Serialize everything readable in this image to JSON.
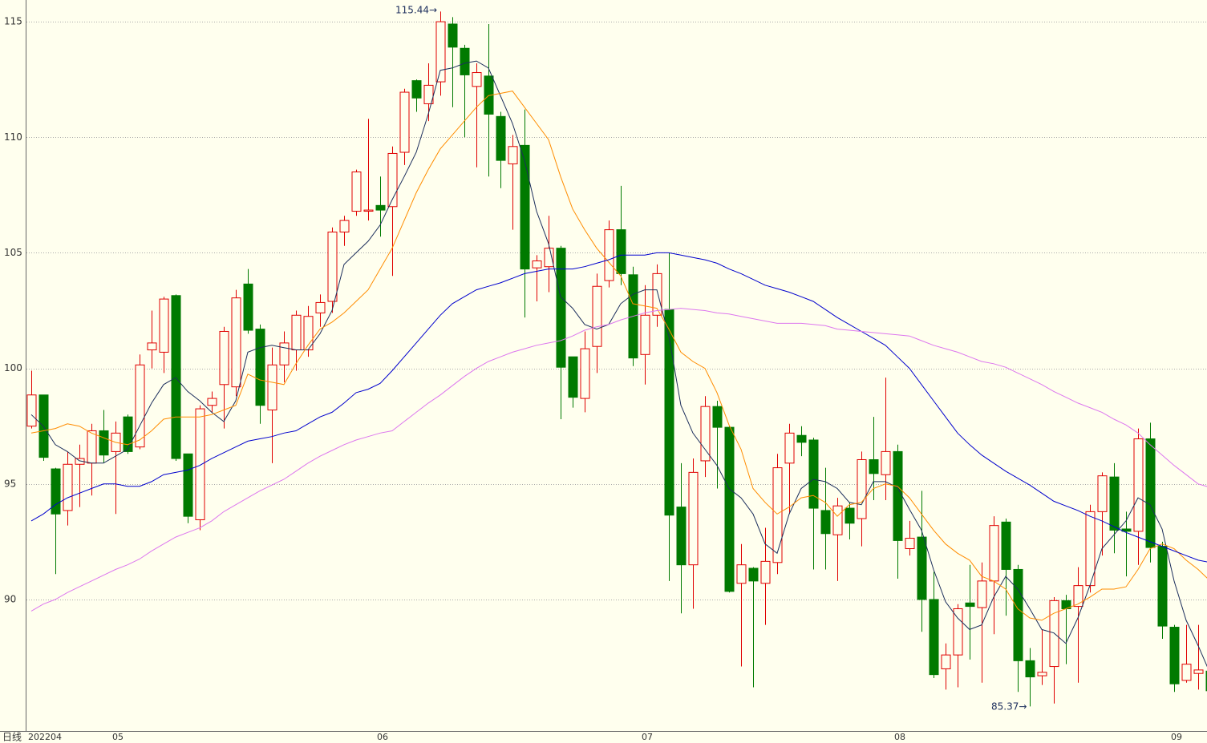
{
  "chart_data": {
    "type": "candlestick",
    "period_label": "日线",
    "annotations": [
      {
        "text": "115.44→"
      },
      {
        "text": "85.37→"
      }
    ],
    "up_color": "#e00000",
    "down_color": "#007a00",
    "categories": [
      "202204",
      null,
      null,
      null,
      null,
      null,
      null,
      "05",
      null,
      null,
      null,
      null,
      null,
      null,
      null,
      null,
      null,
      null,
      null,
      null,
      null,
      null,
      null,
      null,
      null,
      null,
      null,
      null,
      null,
      "06",
      null,
      null,
      null,
      null,
      null,
      null,
      null,
      null,
      null,
      null,
      null,
      null,
      null,
      null,
      null,
      null,
      null,
      null,
      null,
      null,
      null,
      "07",
      null,
      null,
      null,
      null,
      null,
      null,
      null,
      null,
      null,
      null,
      null,
      null,
      null,
      null,
      null,
      null,
      null,
      null,
      null,
      null,
      "08",
      null,
      null,
      null,
      null,
      null,
      null,
      null,
      null,
      null,
      null,
      null,
      null,
      null,
      null,
      null,
      null,
      null,
      null,
      null,
      null,
      null,
      null,
      "09",
      null,
      null,
      null
    ],
    "open": [
      97.5,
      98.85,
      95.65,
      93.85,
      95.85,
      95.9,
      97.3,
      96.4,
      97.9,
      96.6,
      100.8,
      100.7,
      103.15,
      96.3,
      93.45,
      98.4,
      99.3,
      99.2,
      103.65,
      101.7,
      98.2,
      100.15,
      100.8,
      100.8,
      102.4,
      102.9,
      105.9,
      106.8,
      106.8,
      107.05,
      107,
      109.35,
      112.45,
      111.45,
      112.4,
      114.9,
      113.85,
      112.2,
      112.65,
      110.9,
      108.85,
      109.65,
      104.35,
      104.4,
      105.2,
      100.5,
      98.7,
      100.95,
      103.8,
      106,
      104.05,
      100.6,
      102.3,
      102.55,
      94,
      91.5,
      96,
      98.35,
      97.45,
      90.7,
      91.35,
      90.7,
      91.6,
      95.9,
      97.1,
      96.9,
      93.85,
      92.8,
      93.95,
      93.5,
      96.05,
      95.4,
      96.4,
      92.2,
      92.7,
      90,
      87,
      87.6,
      89.85,
      89.65,
      90.8,
      93.35,
      91.3,
      87.35,
      86.7,
      87.1,
      89.95,
      89.7,
      90.6,
      93.8,
      95.3,
      93.05,
      92.95,
      96.95,
      92.3,
      88.8,
      86.5,
      86.8,
      86.9
    ],
    "high": [
      99.9,
      98.85,
      95.7,
      96.4,
      96.7,
      97.6,
      98.2,
      97.7,
      98,
      100.6,
      102.5,
      103.1,
      103.2,
      96.3,
      98.4,
      99,
      101.8,
      103.4,
      104.3,
      101.9,
      100.9,
      101.6,
      102.5,
      102.7,
      103.2,
      106.1,
      106.6,
      108.6,
      110.8,
      108.3,
      109.6,
      112.1,
      112.5,
      113.2,
      115.44,
      115.2,
      114,
      113.2,
      114.9,
      111.1,
      110.1,
      111.2,
      104.9,
      106.6,
      105.3,
      100.5,
      101.6,
      104.1,
      106.4,
      107.9,
      104.4,
      103.6,
      104.5,
      105,
      95.9,
      96.1,
      98.8,
      98.6,
      97.5,
      92.4,
      91.4,
      93.1,
      96.3,
      97.6,
      97.5,
      97,
      95.7,
      94.4,
      94.2,
      96.4,
      97.9,
      99.6,
      96.7,
      93.4,
      94.7,
      91.2,
      88.1,
      89.8,
      91.5,
      91.6,
      93.6,
      93.5,
      91.5,
      87.9,
      88.7,
      90.1,
      90.2,
      91.4,
      94.1,
      95.5,
      95.9,
      93.8,
      97.4,
      97.65,
      92.5,
      88.9,
      88.9,
      88.9,
      87
    ],
    "low": [
      97.4,
      96,
      91.1,
      93.2,
      94,
      94.5,
      95.9,
      93.7,
      96.3,
      96.5,
      100,
      99.8,
      96,
      93.3,
      93,
      98.1,
      97.4,
      98.8,
      101.5,
      97.6,
      95.9,
      99.4,
      99.9,
      100.5,
      101.8,
      102.4,
      105.3,
      106.6,
      106.4,
      105.7,
      104,
      108.8,
      111.1,
      110.7,
      111.8,
      111.3,
      110,
      108.7,
      108.3,
      107.8,
      106,
      102.2,
      102.9,
      103.3,
      97.8,
      98.3,
      98.1,
      99.8,
      103.5,
      103.6,
      100.1,
      99.3,
      101.8,
      90.8,
      89.4,
      89.6,
      95.3,
      94.8,
      90.3,
      87.1,
      86.2,
      88.9,
      91.1,
      93.7,
      96.2,
      91.3,
      91.3,
      90.8,
      92.6,
      92.3,
      94.3,
      94.3,
      90.9,
      91.9,
      88.6,
      86.6,
      86.1,
      86.2,
      87.4,
      86.4,
      88.5,
      89.3,
      86,
      85.37,
      86.3,
      85.5,
      87.2,
      86.4,
      90.3,
      91.9,
      92,
      91,
      91.5,
      91.6,
      88.3,
      86,
      86.4,
      86.1,
      85.9
    ],
    "close": [
      98.85,
      96.15,
      93.7,
      95.85,
      96.1,
      97.3,
      96.25,
      97.2,
      96.4,
      100.15,
      101.1,
      103,
      96.1,
      93.6,
      98.25,
      98.7,
      101.6,
      103.05,
      101.65,
      98.4,
      100.15,
      101.1,
      102.3,
      102.25,
      102.85,
      105.9,
      106.4,
      108.5,
      106.85,
      106.85,
      109.3,
      111.95,
      111.7,
      112.25,
      115,
      113.9,
      112.7,
      112.8,
      111,
      109,
      109.6,
      104.3,
      104.65,
      105.2,
      100.05,
      98.75,
      100.85,
      103.55,
      106,
      104.1,
      100.45,
      102.3,
      104.1,
      93.65,
      91.5,
      95.5,
      98.35,
      97.45,
      90.35,
      91.5,
      90.8,
      91.65,
      95.7,
      97.2,
      96.8,
      93.95,
      92.85,
      94.05,
      93.3,
      96.05,
      95.45,
      96.4,
      92.55,
      92.65,
      90,
      86.75,
      87.6,
      89.6,
      89.7,
      90.8,
      93.2,
      91.3,
      87.35,
      86.65,
      86.85,
      89.95,
      89.6,
      90.6,
      93.8,
      95.35,
      93,
      92.95,
      96.95,
      92.25,
      88.85,
      86.35,
      87.2,
      86.95,
      86.05
    ],
    "series": [
      {
        "color": "#1c2e5c",
        "values": [
          98.0,
          97.5,
          96.7,
          96.4,
          96.0,
          95.9,
          95.9,
          96.2,
          96.5,
          97.5,
          98.5,
          99.3,
          99.6,
          99.0,
          98.6,
          98.1,
          97.7,
          98.6,
          100.7,
          100.9,
          101.0,
          100.9,
          100.8,
          100.8,
          101.5,
          102.5,
          104.5,
          105.0,
          105.5,
          106.2,
          107.3,
          108.3,
          109.35,
          111.0,
          112.9,
          113.0,
          113.2,
          113.3,
          113.0,
          111.8,
          110.6,
          109.0,
          106.8,
          105.4,
          103.1,
          102.6,
          101.9,
          101.7,
          101.9,
          102.8,
          103.2,
          103.4,
          103.4,
          101.4,
          98.4,
          97.2,
          96.5,
          95.8,
          94.8,
          94.4,
          93.7,
          92.4,
          92.0,
          93.7,
          94.8,
          95.2,
          95.1,
          94.8,
          94.2,
          94.1,
          95.1,
          95.1,
          94.85,
          93.9,
          93.0,
          91.3,
          89.9,
          89.2,
          88.7,
          88.9,
          90.1,
          91.0,
          90.45,
          89.6,
          88.7,
          88.55,
          88.1,
          89.2,
          90.6,
          92.2,
          92.8,
          93.4,
          94.4,
          94.1,
          93.05,
          90.8,
          89.1,
          88.0,
          86.8
        ]
      },
      {
        "color": "#ff8c00",
        "values": [
          97.2,
          97.3,
          97.4,
          97.6,
          97.5,
          97.2,
          97.0,
          96.8,
          96.7,
          96.9,
          97.3,
          97.8,
          97.9,
          97.9,
          97.9,
          98.0,
          98.2,
          98.4,
          99.75,
          99.5,
          99.4,
          99.3,
          100.2,
          101.0,
          101.7,
          102.0,
          102.4,
          102.9,
          103.4,
          104.3,
          105.2,
          106.4,
          107.6,
          108.6,
          109.5,
          110.1,
          110.7,
          111.3,
          111.8,
          111.9,
          112.0,
          111.3,
          110.6,
          109.9,
          108.3,
          106.9,
          106.0,
          105.2,
          104.6,
          104.0,
          102.8,
          102.7,
          102.6,
          101.7,
          100.7,
          100.3,
          100.0,
          98.95,
          97.55,
          96.5,
          94.8,
          94.2,
          93.7,
          94.0,
          94.4,
          94.5,
          94.2,
          93.6,
          94.1,
          94.2,
          94.8,
          95.0,
          94.9,
          94.4,
          93.7,
          93.0,
          92.4,
          92.0,
          91.7,
          91.0,
          90.8,
          90.45,
          89.6,
          89.2,
          89.1,
          89.4,
          89.6,
          89.8,
          90.1,
          90.45,
          90.45,
          90.55,
          91.3,
          92.2,
          92.4,
          92.2,
          91.7,
          91.3,
          90.8
        ]
      },
      {
        "color": "#0000cd",
        "values": [
          93.4,
          93.7,
          94.1,
          94.4,
          94.6,
          94.8,
          95.0,
          95.0,
          94.9,
          94.9,
          95.1,
          95.4,
          95.5,
          95.6,
          95.8,
          96.1,
          96.35,
          96.6,
          96.85,
          96.95,
          97.05,
          97.2,
          97.3,
          97.6,
          97.9,
          98.1,
          98.5,
          98.95,
          99.1,
          99.35,
          99.9,
          100.5,
          101.1,
          101.7,
          102.3,
          102.8,
          103.1,
          103.4,
          103.55,
          103.7,
          103.9,
          104.1,
          104.2,
          104.3,
          104.3,
          104.3,
          104.4,
          104.55,
          104.7,
          104.9,
          104.9,
          104.9,
          105.0,
          105.0,
          104.9,
          104.8,
          104.7,
          104.55,
          104.3,
          104.1,
          103.85,
          103.6,
          103.45,
          103.3,
          103.1,
          102.9,
          102.55,
          102.2,
          101.9,
          101.6,
          101.3,
          101.0,
          100.5,
          100.0,
          99.3,
          98.6,
          97.9,
          97.2,
          96.7,
          96.25,
          95.9,
          95.55,
          95.25,
          94.95,
          94.6,
          94.25,
          94.05,
          93.85,
          93.6,
          93.4,
          93.15,
          92.9,
          92.7,
          92.5,
          92.3,
          92.1,
          91.9,
          91.7,
          91.6
        ]
      },
      {
        "color": "#dd77ee",
        "values": [
          89.5,
          89.8,
          90.0,
          90.3,
          90.55,
          90.8,
          91.05,
          91.3,
          91.5,
          91.75,
          92.1,
          92.4,
          92.7,
          92.9,
          93.1,
          93.4,
          93.8,
          94.1,
          94.4,
          94.7,
          94.95,
          95.2,
          95.55,
          95.9,
          96.2,
          96.45,
          96.7,
          96.9,
          97.05,
          97.2,
          97.3,
          97.7,
          98.1,
          98.5,
          98.85,
          99.25,
          99.65,
          100.0,
          100.3,
          100.5,
          100.7,
          100.85,
          101.0,
          101.1,
          101.2,
          101.4,
          101.65,
          101.8,
          101.9,
          102.1,
          102.25,
          102.4,
          102.5,
          102.55,
          102.6,
          102.55,
          102.5,
          102.4,
          102.35,
          102.25,
          102.15,
          102.05,
          101.95,
          101.95,
          101.95,
          101.9,
          101.85,
          101.7,
          101.65,
          101.6,
          101.55,
          101.5,
          101.45,
          101.4,
          101.2,
          101.0,
          100.85,
          100.7,
          100.5,
          100.3,
          100.2,
          100.05,
          99.8,
          99.55,
          99.3,
          99.0,
          98.75,
          98.5,
          98.3,
          98.1,
          97.8,
          97.55,
          97.2,
          96.7,
          96.25,
          95.8,
          95.4,
          95.0,
          94.85
        ]
      }
    ],
    "ylim": [
      84.31,
      115.94
    ],
    "yticks": [
      90,
      95,
      100,
      105,
      110,
      115
    ],
    "grid": true
  }
}
